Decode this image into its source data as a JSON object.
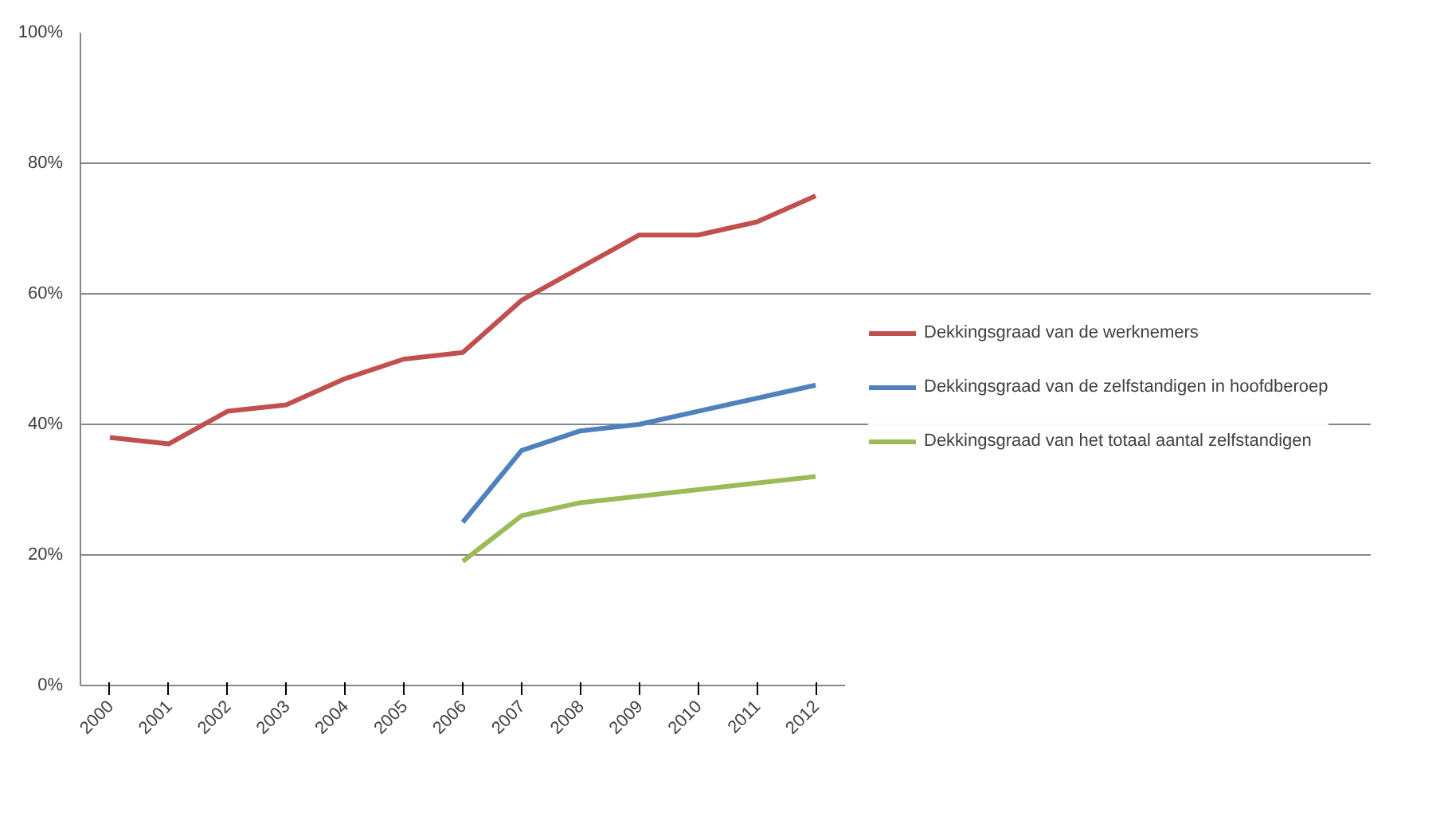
{
  "chart_data": {
    "type": "line",
    "categories": [
      "2000",
      "2001",
      "2002",
      "2003",
      "2004",
      "2005",
      "2006",
      "2007",
      "2008",
      "2009",
      "2010",
      "2011",
      "2012"
    ],
    "series": [
      {
        "name": "Dekkingsgraad van de werknemers",
        "color": "#c0504d",
        "values": [
          38,
          37,
          42,
          43,
          47,
          50,
          51,
          59,
          64,
          69,
          69,
          71,
          75
        ]
      },
      {
        "name": "Dekkingsgraad van de zelfstandigen in hoofdberoep",
        "color": "#4f81bd",
        "values": [
          null,
          null,
          null,
          null,
          null,
          null,
          25,
          36,
          39,
          40,
          42,
          44,
          46
        ]
      },
      {
        "name": "Dekkingsgraad van het totaal aantal zelfstandigen",
        "color": "#9bbb59",
        "values": [
          null,
          null,
          null,
          null,
          null,
          null,
          19,
          26,
          28,
          29,
          30,
          31,
          32
        ]
      }
    ],
    "ylim": [
      0,
      100
    ],
    "yticks": [
      {
        "value": 0,
        "label": "0%"
      },
      {
        "value": 20,
        "label": "20%"
      },
      {
        "value": 40,
        "label": "40%"
      },
      {
        "value": 60,
        "label": "60%"
      },
      {
        "value": 80,
        "label": "80%"
      },
      {
        "value": 100,
        "label": "100%"
      }
    ],
    "grid": "y",
    "legend": "right",
    "marker": "none",
    "line_style": "solid"
  }
}
